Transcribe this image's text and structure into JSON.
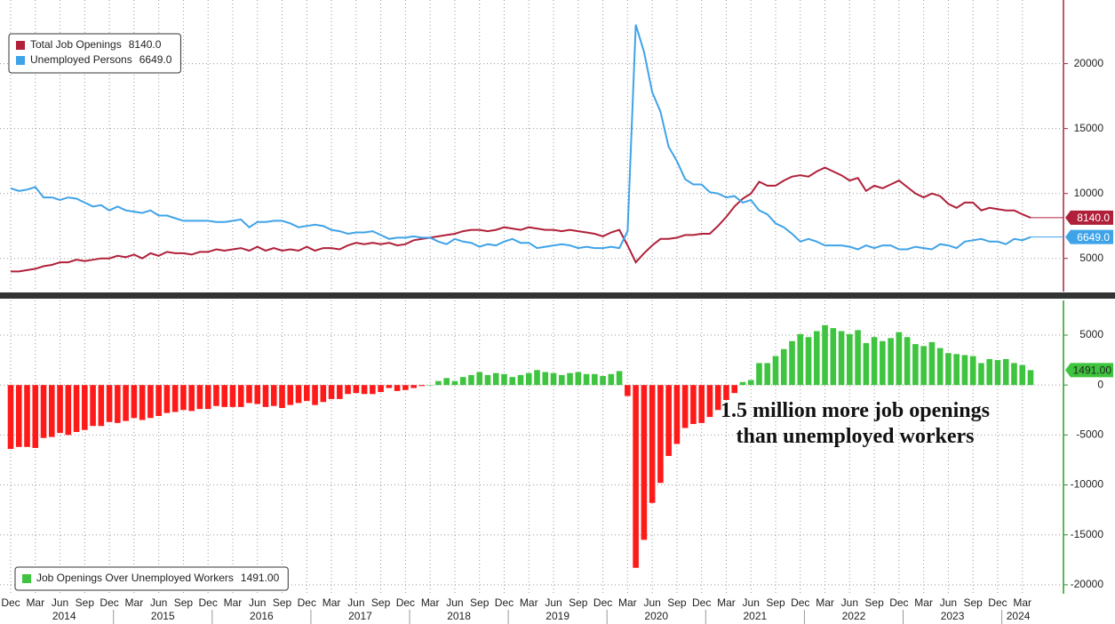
{
  "chart_data": [
    {
      "type": "line",
      "ylim": [
        2450,
        24900
      ],
      "yticks": [
        5000,
        10000,
        15000,
        20000
      ],
      "grid": true,
      "legend": "upper left",
      "axis_color": "#a0283a",
      "series": [
        {
          "name": "Total Job Openings",
          "color": "#b0203a",
          "last_value_label": "8140.0",
          "values": [
            4000,
            4000,
            4100,
            4200,
            4400,
            4500,
            4700,
            4700,
            4900,
            4800,
            4900,
            5000,
            5000,
            5200,
            5100,
            5300,
            5000,
            5400,
            5200,
            5500,
            5400,
            5400,
            5300,
            5500,
            5500,
            5700,
            5600,
            5700,
            5800,
            5600,
            5900,
            5600,
            5800,
            5600,
            5700,
            5600,
            5900,
            5600,
            5800,
            5800,
            5700,
            6000,
            6200,
            6100,
            6200,
            6100,
            6200,
            6000,
            6100,
            6400,
            6500,
            6600,
            6700,
            6800,
            6900,
            7100,
            7200,
            7200,
            7100,
            7200,
            7400,
            7300,
            7200,
            7400,
            7300,
            7200,
            7200,
            7100,
            7200,
            7100,
            7000,
            6900,
            6700,
            7000,
            7200,
            6000,
            4700,
            5400,
            6000,
            6500,
            6500,
            6600,
            6800,
            6800,
            6900,
            6900,
            7500,
            8200,
            9000,
            9600,
            10000,
            10900,
            10600,
            10600,
            11000,
            11300,
            11400,
            11300,
            11700,
            12000,
            11700,
            11400,
            11000,
            11200,
            10200,
            10600,
            10400,
            10700,
            11000,
            10500,
            10000,
            9700,
            10000,
            9800,
            9200,
            8900,
            9300,
            9300,
            8700,
            8900,
            8800,
            8700,
            8700,
            8400,
            8140
          ]
        },
        {
          "name": "Unemployed Persons",
          "color": "#3fa3e8",
          "last_value_label": "6649.0",
          "values": [
            10400,
            10200,
            10300,
            10500,
            9700,
            9700,
            9500,
            9700,
            9600,
            9300,
            9000,
            9100,
            8700,
            9000,
            8700,
            8600,
            8500,
            8700,
            8300,
            8300,
            8100,
            7900,
            7900,
            7900,
            7900,
            7800,
            7800,
            7900,
            8000,
            7400,
            7800,
            7800,
            7900,
            7900,
            7700,
            7400,
            7500,
            7600,
            7500,
            7200,
            7100,
            6900,
            7000,
            7000,
            7100,
            6800,
            6500,
            6600,
            6600,
            6700,
            6600,
            6600,
            6300,
            6100,
            6500,
            6300,
            6200,
            5900,
            6100,
            6000,
            6300,
            6500,
            6200,
            6200,
            5800,
            5900,
            6000,
            6100,
            6000,
            5800,
            5900,
            5800,
            5800,
            5900,
            5800,
            7100,
            23000,
            20900,
            17800,
            16300,
            13600,
            12500,
            11100,
            10700,
            10700,
            10100,
            10000,
            9700,
            9800,
            9300,
            9500,
            8700,
            8400,
            7700,
            7400,
            6900,
            6300,
            6500,
            6300,
            6000,
            6000,
            6000,
            5900,
            5700,
            6000,
            5800,
            6000,
            6000,
            5700,
            5700,
            5900,
            5800,
            5700,
            6100,
            6000,
            5800,
            6300,
            6400,
            6500,
            6300,
            6300,
            6100,
            6500,
            6400,
            6649
          ]
        }
      ]
    },
    {
      "type": "bar",
      "ylim": [
        -20900,
        8470
      ],
      "yticks": [
        -20000,
        -15000,
        -10000,
        -5000,
        0,
        5000
      ],
      "grid": true,
      "legend": "lower left",
      "axis_color": "#2a9a2a",
      "annotation": "1.5 million more job openings than unemployed workers",
      "categories": [
        "Dec",
        null,
        null,
        "Mar",
        null,
        null,
        "Jun",
        null,
        null,
        "Sep",
        null,
        null,
        "Dec",
        null,
        null,
        "Mar",
        null,
        null,
        "Jun",
        null,
        null,
        "Sep",
        null,
        null,
        "Dec",
        null,
        null,
        "Mar",
        null,
        null,
        "Jun",
        null,
        null,
        "Sep",
        null,
        null,
        "Dec",
        null,
        null,
        "Mar",
        null,
        null,
        "Jun",
        null,
        null,
        "Sep",
        null,
        null,
        "Dec",
        null,
        null,
        "Mar",
        null,
        null,
        "Jun",
        null,
        null,
        "Sep",
        null,
        null,
        "Dec",
        null,
        null,
        "Mar",
        null,
        null,
        "Jun",
        null,
        null,
        "Sep",
        null,
        null,
        "Dec",
        null,
        null,
        "Mar",
        null,
        null,
        "Jun",
        null,
        null,
        "Sep",
        null,
        null,
        "Dec",
        null,
        null,
        "Mar",
        null,
        null,
        "Jun",
        null,
        null,
        "Sep",
        null,
        null,
        "Dec",
        null,
        null,
        "Mar",
        null,
        null,
        "Jun",
        null,
        null,
        "Sep",
        null,
        null,
        "Dec",
        null,
        null,
        "Mar",
        null,
        null,
        "Jun",
        null,
        null,
        "Sep",
        null,
        null,
        "Dec",
        null,
        null,
        "Mar",
        null
      ],
      "year_labels": [
        "2014",
        "2015",
        "2016",
        "2017",
        "2018",
        "2019",
        "2020",
        "2021",
        "2022",
        "2023",
        "2024"
      ],
      "series": [
        {
          "name": "Job Openings Over Unemployed Workers",
          "color_positive": "#3ec43e",
          "color_negative": "#ff1a1a",
          "last_value_label": "1491.00",
          "values": [
            -6400,
            -6200,
            -6200,
            -6300,
            -5300,
            -5200,
            -4800,
            -5000,
            -4700,
            -4500,
            -4100,
            -4100,
            -3700,
            -3800,
            -3600,
            -3300,
            -3500,
            -3300,
            -3100,
            -2800,
            -2700,
            -2500,
            -2600,
            -2400,
            -2400,
            -2100,
            -2200,
            -2200,
            -2200,
            -1800,
            -1900,
            -2200,
            -2100,
            -2300,
            -2000,
            -1800,
            -1600,
            -2000,
            -1700,
            -1400,
            -1400,
            -900,
            -800,
            -900,
            -900,
            -700,
            -300,
            -600,
            -500,
            -300,
            -100,
            0,
            400,
            700,
            400,
            800,
            1000,
            1300,
            1000,
            1200,
            1100,
            800,
            1000,
            1200,
            1500,
            1300,
            1200,
            1000,
            1200,
            1300,
            1100,
            1100,
            900,
            1100,
            1400,
            -1100,
            -18300,
            -15500,
            -11800,
            -9800,
            -7100,
            -5900,
            -4300,
            -3900,
            -3800,
            -3200,
            -2500,
            -1500,
            -800,
            300,
            500,
            2200,
            2200,
            2900,
            3600,
            4400,
            5100,
            4800,
            5400,
            6000,
            5700,
            5400,
            5100,
            5500,
            4200,
            4800,
            4400,
            4700,
            5300,
            4800,
            4100,
            3900,
            4300,
            3700,
            3200,
            3100,
            3000,
            2900,
            2200,
            2600,
            2500,
            2600,
            2200,
            2000,
            1491
          ]
        }
      ]
    }
  ]
}
